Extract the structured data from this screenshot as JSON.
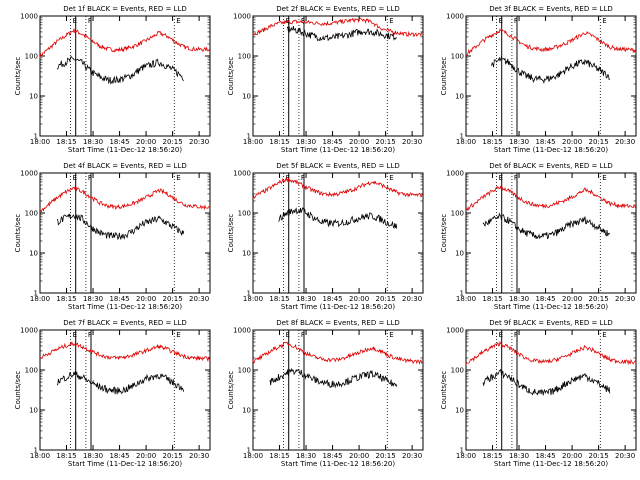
{
  "x_ticks": [
    "18:00",
    "18:15",
    "18:30",
    "18:45",
    "20:00",
    "20:15",
    "20:30"
  ],
  "y_ticks": [
    "1",
    "10",
    "100",
    "1000"
  ],
  "y_label": "Counts/sec",
  "x_label": "Start Time (11-Dec-12 18:56:20)",
  "marker_labels": [
    "E",
    "F",
    "E"
  ],
  "colors": {
    "events": "#000000",
    "lld": "#e00000"
  },
  "chart_data": [
    {
      "type": "line",
      "title": "Det 1f BLACK = Events, RED = LLD",
      "ylim": [
        1,
        1000
      ],
      "yscale": "log",
      "x": [
        0.0,
        0.05,
        0.1,
        0.15,
        0.2,
        0.25,
        0.3,
        0.35,
        0.4,
        0.45,
        0.5,
        0.55,
        0.6,
        0.65,
        0.7,
        0.75,
        0.8,
        0.85,
        0.9,
        0.95,
        1.0
      ],
      "series": [
        {
          "name": "LLD",
          "color": "red",
          "values": [
            100,
            150,
            230,
            320,
            440,
            350,
            250,
            180,
            150,
            140,
            150,
            175,
            215,
            280,
            380,
            310,
            220,
            165,
            150,
            145,
            145
          ]
        },
        {
          "name": "Events",
          "color": "black",
          "values": [
            null,
            null,
            55,
            70,
            85,
            65,
            40,
            30,
            25,
            25,
            28,
            35,
            50,
            60,
            70,
            55,
            40,
            28,
            null,
            null,
            null
          ]
        }
      ]
    },
    {
      "type": "line",
      "title": "Det 2f BLACK = Events, RED = LLD",
      "ylim": [
        1,
        1000
      ],
      "yscale": "log",
      "x": [
        0.0,
        0.05,
        0.1,
        0.15,
        0.2,
        0.25,
        0.3,
        0.35,
        0.4,
        0.45,
        0.5,
        0.55,
        0.6,
        0.65,
        0.7,
        0.75,
        0.8,
        0.85,
        0.9,
        0.95,
        1.0
      ],
      "series": [
        {
          "name": "LLD",
          "color": "red",
          "values": [
            350,
            420,
            550,
            650,
            700,
            720,
            700,
            680,
            650,
            650,
            700,
            750,
            800,
            800,
            700,
            500,
            420,
            380,
            350,
            350,
            350
          ]
        },
        {
          "name": "Events",
          "color": "black",
          "values": [
            null,
            null,
            null,
            null,
            480,
            450,
            380,
            320,
            290,
            280,
            300,
            330,
            380,
            420,
            400,
            360,
            320,
            300,
            null,
            null,
            null
          ]
        }
      ]
    },
    {
      "type": "line",
      "title": "Det 3f BLACK = Events, RED = LLD",
      "ylim": [
        1,
        1000
      ],
      "yscale": "log",
      "x": [
        0.0,
        0.05,
        0.1,
        0.15,
        0.2,
        0.25,
        0.3,
        0.35,
        0.4,
        0.45,
        0.5,
        0.55,
        0.6,
        0.65,
        0.7,
        0.75,
        0.8,
        0.85,
        0.9,
        0.95,
        1.0
      ],
      "series": [
        {
          "name": "LLD",
          "color": "red",
          "values": [
            110,
            160,
            240,
            330,
            440,
            350,
            250,
            180,
            155,
            145,
            150,
            180,
            220,
            290,
            380,
            310,
            220,
            165,
            150,
            145,
            140
          ]
        },
        {
          "name": "Events",
          "color": "black",
          "values": [
            null,
            null,
            null,
            60,
            80,
            70,
            45,
            32,
            27,
            26,
            28,
            35,
            50,
            62,
            72,
            55,
            40,
            30,
            null,
            null,
            null
          ]
        }
      ]
    },
    {
      "type": "line",
      "title": "Det 4f BLACK = Events, RED = LLD",
      "ylim": [
        1,
        1000
      ],
      "yscale": "log",
      "x": [
        0.0,
        0.05,
        0.1,
        0.15,
        0.2,
        0.25,
        0.3,
        0.35,
        0.4,
        0.45,
        0.5,
        0.55,
        0.6,
        0.65,
        0.7,
        0.75,
        0.8,
        0.85,
        0.9,
        0.95,
        1.0
      ],
      "series": [
        {
          "name": "LLD",
          "color": "red",
          "values": [
            110,
            160,
            240,
            330,
            430,
            340,
            250,
            180,
            150,
            140,
            150,
            175,
            215,
            280,
            370,
            300,
            215,
            160,
            150,
            140,
            140
          ]
        },
        {
          "name": "Events",
          "color": "black",
          "values": [
            null,
            null,
            60,
            75,
            90,
            70,
            45,
            32,
            27,
            26,
            28,
            36,
            52,
            62,
            72,
            55,
            40,
            30,
            null,
            null,
            null
          ]
        }
      ]
    },
    {
      "type": "line",
      "title": "Det 5f BLACK = Events, RED = LLD",
      "ylim": [
        1,
        1000
      ],
      "yscale": "log",
      "x": [
        0.0,
        0.05,
        0.1,
        0.15,
        0.2,
        0.25,
        0.3,
        0.35,
        0.4,
        0.45,
        0.5,
        0.55,
        0.6,
        0.65,
        0.7,
        0.75,
        0.8,
        0.85,
        0.9,
        0.95,
        1.0
      ],
      "series": [
        {
          "name": "LLD",
          "color": "red",
          "values": [
            250,
            320,
            420,
            560,
            700,
            600,
            470,
            370,
            310,
            290,
            300,
            340,
            400,
            500,
            600,
            520,
            400,
            320,
            290,
            280,
            280
          ]
        },
        {
          "name": "Events",
          "color": "black",
          "values": [
            null,
            null,
            null,
            70,
            100,
            120,
            110,
            80,
            60,
            55,
            55,
            60,
            70,
            80,
            85,
            70,
            55,
            45,
            null,
            null,
            null
          ]
        }
      ]
    },
    {
      "type": "line",
      "title": "Det 6f BLACK = Events, RED = LLD",
      "ylim": [
        1,
        1000
      ],
      "yscale": "log",
      "x": [
        0.0,
        0.05,
        0.1,
        0.15,
        0.2,
        0.25,
        0.3,
        0.35,
        0.4,
        0.45,
        0.5,
        0.55,
        0.6,
        0.65,
        0.7,
        0.75,
        0.8,
        0.85,
        0.9,
        0.95,
        1.0
      ],
      "series": [
        {
          "name": "LLD",
          "color": "red",
          "values": [
            120,
            170,
            250,
            340,
            450,
            360,
            260,
            190,
            160,
            150,
            155,
            185,
            225,
            290,
            380,
            310,
            225,
            170,
            155,
            150,
            145
          ]
        },
        {
          "name": "Events",
          "color": "black",
          "values": [
            null,
            null,
            50,
            65,
            80,
            65,
            42,
            32,
            27,
            26,
            28,
            35,
            48,
            58,
            68,
            52,
            38,
            28,
            null,
            null,
            null
          ]
        }
      ]
    },
    {
      "type": "line",
      "title": "Det 7f BLACK = Events, RED = LLD",
      "ylim": [
        1,
        1000
      ],
      "yscale": "log",
      "x": [
        0.0,
        0.05,
        0.1,
        0.15,
        0.2,
        0.25,
        0.3,
        0.35,
        0.4,
        0.45,
        0.5,
        0.55,
        0.6,
        0.65,
        0.7,
        0.75,
        0.8,
        0.85,
        0.9,
        0.95,
        1.0
      ],
      "series": [
        {
          "name": "LLD",
          "color": "red",
          "values": [
            200,
            260,
            330,
            400,
            460,
            380,
            300,
            240,
            210,
            200,
            210,
            240,
            280,
            330,
            390,
            330,
            260,
            220,
            200,
            195,
            190
          ]
        },
        {
          "name": "Events",
          "color": "black",
          "values": [
            null,
            null,
            50,
            65,
            80,
            65,
            48,
            38,
            32,
            30,
            32,
            40,
            55,
            65,
            75,
            58,
            44,
            34,
            null,
            null,
            null
          ]
        }
      ]
    },
    {
      "type": "line",
      "title": "Det 8f BLACK = Events, RED = LLD",
      "ylim": [
        1,
        1000
      ],
      "yscale": "log",
      "x": [
        0.0,
        0.05,
        0.1,
        0.15,
        0.2,
        0.25,
        0.3,
        0.35,
        0.4,
        0.45,
        0.5,
        0.55,
        0.6,
        0.65,
        0.7,
        0.75,
        0.8,
        0.85,
        0.9,
        0.95,
        1.0
      ],
      "series": [
        {
          "name": "LLD",
          "color": "red",
          "values": [
            160,
            210,
            290,
            380,
            470,
            380,
            280,
            220,
            190,
            180,
            180,
            210,
            250,
            300,
            360,
            300,
            230,
            190,
            170,
            165,
            160
          ]
        },
        {
          "name": "Events",
          "color": "black",
          "values": [
            null,
            null,
            50,
            65,
            85,
            95,
            80,
            60,
            50,
            45,
            45,
            52,
            62,
            72,
            80,
            65,
            50,
            40,
            null,
            null,
            null
          ]
        }
      ]
    },
    {
      "type": "line",
      "title": "Det 9f BLACK = Events, RED = LLD",
      "ylim": [
        1,
        1000
      ],
      "yscale": "log",
      "x": [
        0.0,
        0.05,
        0.1,
        0.15,
        0.2,
        0.25,
        0.3,
        0.35,
        0.4,
        0.45,
        0.5,
        0.55,
        0.6,
        0.65,
        0.7,
        0.75,
        0.8,
        0.85,
        0.9,
        0.95,
        1.0
      ],
      "series": [
        {
          "name": "LLD",
          "color": "red",
          "values": [
            150,
            200,
            280,
            370,
            460,
            370,
            270,
            200,
            170,
            160,
            165,
            195,
            235,
            290,
            370,
            310,
            230,
            180,
            165,
            160,
            155
          ]
        },
        {
          "name": "Events",
          "color": "black",
          "values": [
            null,
            null,
            50,
            65,
            85,
            70,
            46,
            34,
            28,
            26,
            28,
            36,
            50,
            62,
            72,
            55,
            40,
            30,
            null,
            null,
            null
          ]
        }
      ]
    }
  ]
}
